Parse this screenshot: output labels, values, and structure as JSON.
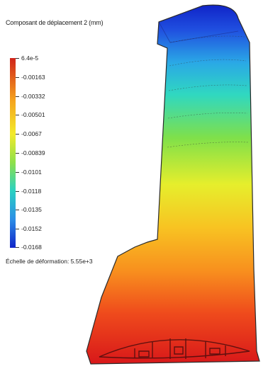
{
  "legend": {
    "title": "Composant de déplacement 2 (mm)",
    "ticks": [
      "6.4e-5",
      "-0.00163",
      "-0.00332",
      "-0.00501",
      "-0.0067",
      "-0.00839",
      "-0.0101",
      "-0.0118",
      "-0.0135",
      "-0.0152",
      "-0.0168"
    ],
    "scale_label": "Échelle de déformation: 5.55e+3"
  },
  "colors": {
    "max": "#d0241a",
    "min": "#1024c8",
    "stroke": "#2a2a2a"
  }
}
